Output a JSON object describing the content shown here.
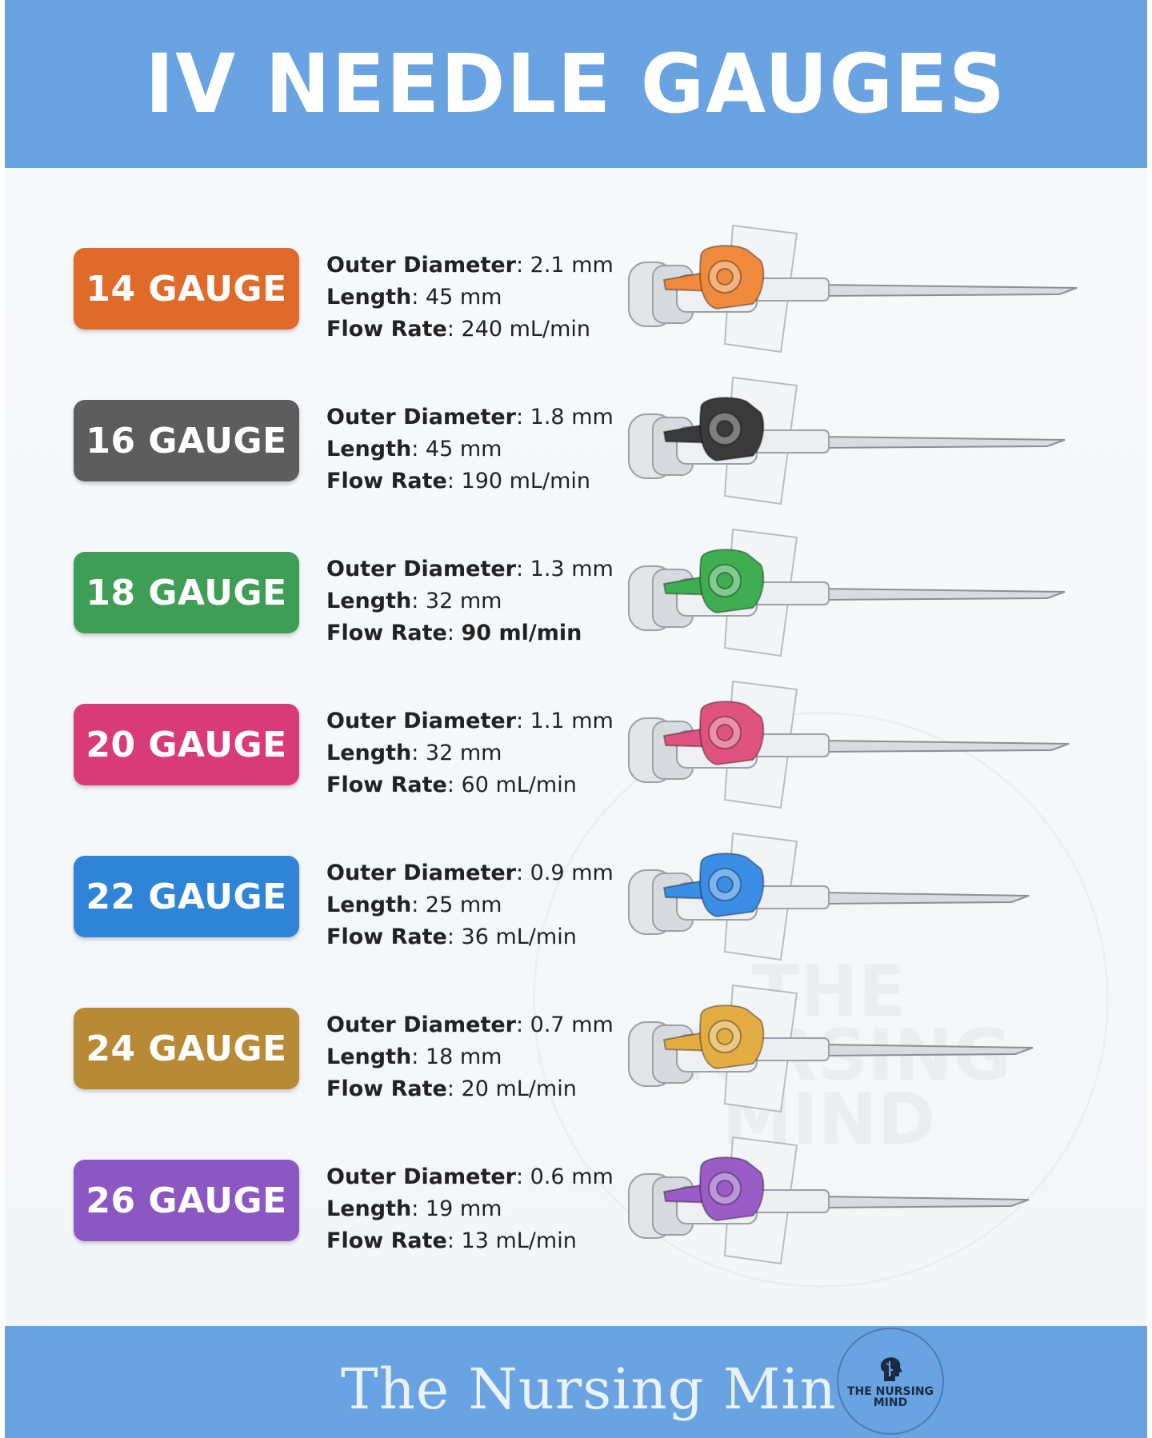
{
  "header": {
    "title": "IV NEEDLE GAUGES"
  },
  "labels": {
    "outer_diameter": "Outer Diameter",
    "length": "Length",
    "flow_rate": "Flow Rate"
  },
  "gauges": [
    {
      "label": "14 GAUGE",
      "color": "#e06a2a",
      "outer_diameter": "2.1 mm",
      "length": "45 mm",
      "flow_rate": "240 mL/min"
    },
    {
      "label": "16 GAUGE",
      "color": "#5d5d5d",
      "outer_diameter": "1.8 mm",
      "length": "45 mm",
      "flow_rate": "190 mL/min"
    },
    {
      "label": "18 GAUGE",
      "color": "#3e9e56",
      "outer_diameter": "1.3 mm",
      "length": "32 mm",
      "flow_rate": "90 ml/min"
    },
    {
      "label": "20 GAUGE",
      "color": "#d93a78",
      "outer_diameter": "1.1 mm",
      "length": "32 mm",
      "flow_rate": "60 mL/min"
    },
    {
      "label": "22 GAUGE",
      "color": "#2f84d8",
      "outer_diameter": "0.9 mm",
      "length": "25 mm",
      "flow_rate": "36 mL/min"
    },
    {
      "label": "24 GAUGE",
      "color": "#b98a35",
      "outer_diameter": "0.7 mm",
      "length": "18 mm",
      "flow_rate": "20 mL/min"
    },
    {
      "label": "26 GAUGE",
      "color": "#8c57c2",
      "outer_diameter": "0.6 mm",
      "length": "19 mm",
      "flow_rate": "13 mL/min"
    }
  ],
  "hub_colors": [
    "#f08a3c",
    "#3a3a3a",
    "#3fae52",
    "#e0537f",
    "#3a8ee6",
    "#e4ad44",
    "#9a5cc6"
  ],
  "watermark": {
    "text": "THE NURSING MIND"
  },
  "footer": {
    "title": "The Nursing Mind",
    "logo_text": "THE NURSING MIND"
  }
}
